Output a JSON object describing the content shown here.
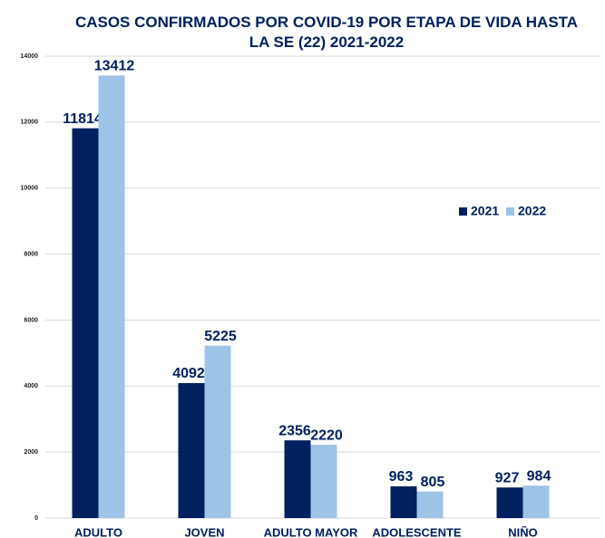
{
  "chart_data": {
    "type": "bar",
    "title": "CASOS CONFIRMADOS POR COVID-19 POR ETAPA DE VIDA HASTA LA SE (22) 2021-2022",
    "categories": [
      "ADULTO",
      "JOVEN",
      "ADULTO MAYOR",
      "ADOLESCENTE",
      "NIÑO"
    ],
    "series": [
      {
        "name": "2021",
        "color": "#002060",
        "values": [
          11814,
          4092,
          2356,
          963,
          927
        ]
      },
      {
        "name": "2022",
        "color": "#9dc3e6",
        "values": [
          13412,
          5225,
          2220,
          805,
          984
        ]
      }
    ],
    "ylim": [
      0,
      14000
    ],
    "yticks": [
      0,
      2000,
      4000,
      6000,
      8000,
      10000,
      12000,
      14000
    ],
    "grid": true,
    "legend": "right"
  }
}
